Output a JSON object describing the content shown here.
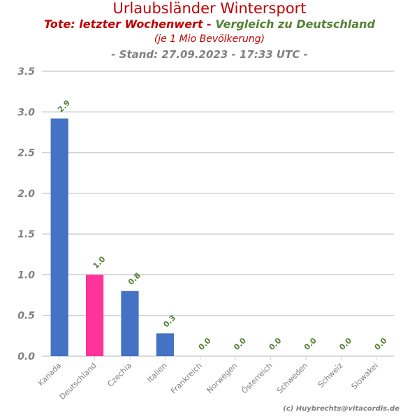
{
  "header": {
    "title": "Urlaubsländer Wintersport",
    "subtitle_part1": "Tote: letzter Wochenwert - ",
    "subtitle_part2": "Vergleich zu Deutschland",
    "subtitle_line2": "(je 1 Mio Bevölkerung)",
    "stand": "- Stand: 27.09.2023 - 17:33 UTC -"
  },
  "credit": "(c) Huybrechts@vitacordis.de",
  "chart_data": {
    "type": "bar",
    "categories": [
      "Kanada",
      "Deutschland",
      "Czechia",
      "Italien",
      "Frankreich",
      "Norwegen",
      "Österreich",
      "Schweden",
      "Schweiz",
      "Slowakei"
    ],
    "values": [
      2.92,
      1.0,
      0.8,
      0.28,
      0.0,
      0.0,
      0.0,
      0.0,
      0.0,
      0.0
    ],
    "data_labels": [
      "2.9",
      "1.0",
      "0.8",
      "0.3",
      "0.0",
      "0.0",
      "0.0",
      "0.0",
      "0.0",
      "0.0"
    ],
    "colors": [
      "#4472c4",
      "#ff3399",
      "#4472c4",
      "#4472c4",
      "#4472c4",
      "#4472c4",
      "#4472c4",
      "#4472c4",
      "#4472c4",
      "#4472c4"
    ],
    "ylim": [
      0,
      3.5
    ],
    "yticks": [
      "0.0",
      "0.5",
      "1.0",
      "1.5",
      "2.0",
      "2.5",
      "3.0",
      "3.5"
    ],
    "grid": true,
    "label_color": "#548235",
    "axis_text_color": "#808080",
    "grid_color": "#d0d0d0"
  }
}
